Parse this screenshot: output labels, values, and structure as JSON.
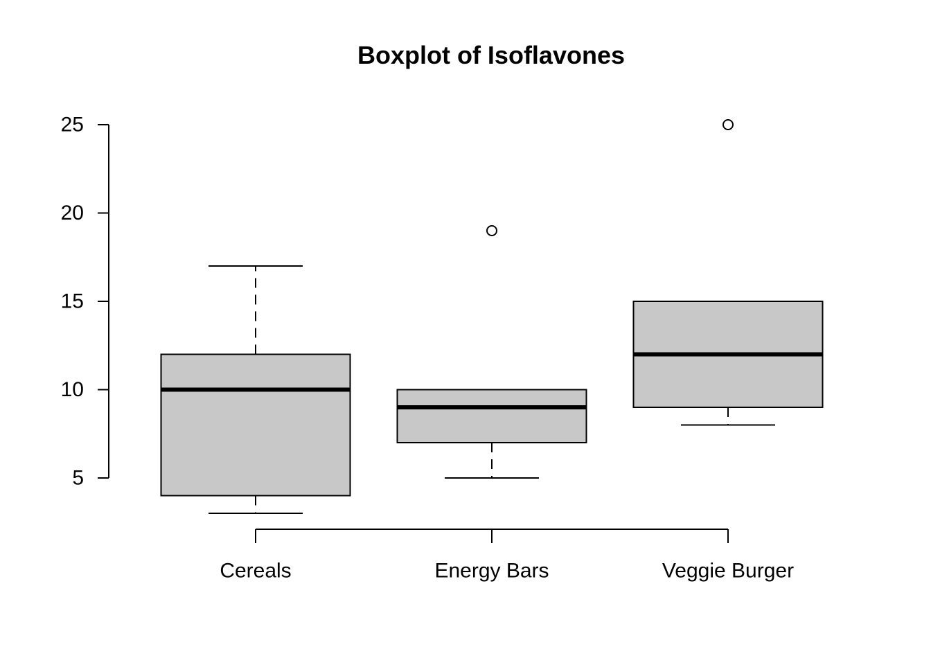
{
  "chart_data": {
    "type": "boxplot",
    "title": "Boxplot of Isoflavones",
    "xlabel": "",
    "ylabel": "",
    "ylim": [
      2,
      26
    ],
    "yticks": [
      5,
      10,
      15,
      20,
      25
    ],
    "categories": [
      "Cereals",
      "Energy Bars",
      "Veggie Burger"
    ],
    "boxes": [
      {
        "category": "Cereals",
        "whisker_low": 3,
        "q1": 4,
        "median": 10,
        "q3": 12,
        "whisker_high": 17,
        "outliers": []
      },
      {
        "category": "Energy Bars",
        "whisker_low": 5,
        "q1": 7,
        "median": 9,
        "q3": 10,
        "whisker_high": 10,
        "outliers": [
          19
        ]
      },
      {
        "category": "Veggie Burger",
        "whisker_low": 8,
        "q1": 9,
        "median": 12,
        "q3": 15,
        "whisker_high": 15,
        "outliers": [
          25
        ]
      }
    ],
    "grid": false,
    "colors": {
      "box_fill": "#c8c8c8",
      "stroke": "#000000"
    }
  }
}
